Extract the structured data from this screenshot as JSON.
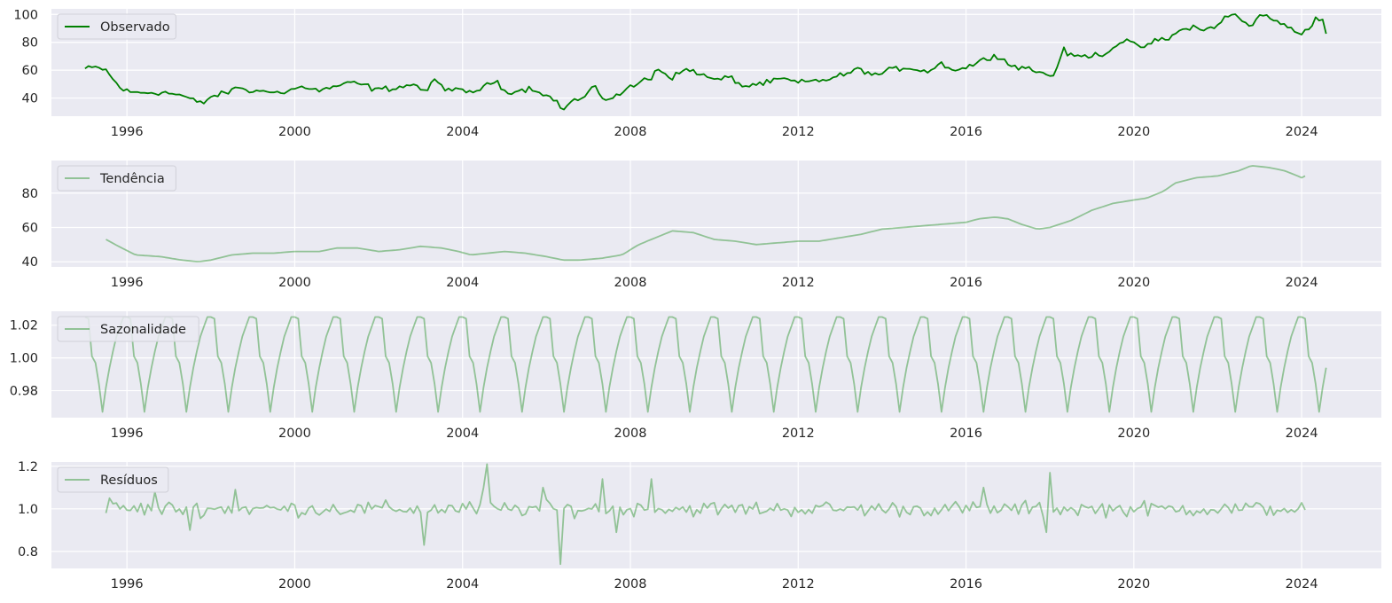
{
  "chart_data": [
    {
      "type": "line",
      "panel": "observed",
      "series": [
        {
          "name": "Observado",
          "color": "#008000",
          "opacity": 1.0
        }
      ],
      "xlim": [
        1994.2,
        2025.9
      ],
      "ylim": [
        27,
        104
      ],
      "yticks": [
        40,
        60,
        80,
        100
      ],
      "ytick_labels": [
        "40",
        "60",
        "80",
        "100"
      ],
      "xticks": [
        1996,
        2000,
        2004,
        2008,
        2012,
        2016,
        2020,
        2024
      ],
      "xtick_labels": [
        "1996",
        "2000",
        "2004",
        "2008",
        "2012",
        "2016",
        "2020",
        "2024"
      ],
      "grid": true,
      "legend": "upper-left",
      "start": 1995.0,
      "end": 2024.58,
      "anchors": [
        [
          1995.0,
          61
        ],
        [
          1995.3,
          62
        ],
        [
          1995.5,
          60
        ],
        [
          1995.7,
          52
        ],
        [
          1995.9,
          46
        ],
        [
          1996.1,
          44
        ],
        [
          1996.5,
          44
        ],
        [
          1996.9,
          44
        ],
        [
          1997.3,
          42
        ],
        [
          1997.6,
          38
        ],
        [
          1997.8,
          36
        ],
        [
          1998.0,
          41
        ],
        [
          1998.3,
          43
        ],
        [
          1998.7,
          48
        ],
        [
          1999.0,
          44
        ],
        [
          1999.4,
          46
        ],
        [
          1999.7,
          43
        ],
        [
          2000.0,
          47
        ],
        [
          2000.3,
          48
        ],
        [
          2000.6,
          45
        ],
        [
          2000.9,
          48
        ],
        [
          2001.4,
          51
        ],
        [
          2001.7,
          49
        ],
        [
          2001.9,
          46
        ],
        [
          2002.3,
          47
        ],
        [
          2002.7,
          49
        ],
        [
          2002.9,
          50
        ],
        [
          2003.1,
          43
        ],
        [
          2003.3,
          53
        ],
        [
          2003.6,
          47
        ],
        [
          2003.9,
          45
        ],
        [
          2004.2,
          44
        ],
        [
          2004.6,
          49
        ],
        [
          2004.8,
          53
        ],
        [
          2005.0,
          45
        ],
        [
          2005.3,
          45
        ],
        [
          2005.6,
          47
        ],
        [
          2005.9,
          44
        ],
        [
          2006.0,
          42
        ],
        [
          2006.3,
          36
        ],
        [
          2006.4,
          31
        ],
        [
          2006.6,
          38
        ],
        [
          2006.9,
          40
        ],
        [
          2007.1,
          48
        ],
        [
          2007.4,
          39
        ],
        [
          2007.7,
          42
        ],
        [
          2007.9,
          46
        ],
        [
          2008.1,
          49
        ],
        [
          2008.3,
          53
        ],
        [
          2008.5,
          54
        ],
        [
          2008.6,
          62
        ],
        [
          2008.8,
          58
        ],
        [
          2009.0,
          55
        ],
        [
          2009.3,
          60
        ],
        [
          2009.5,
          60
        ],
        [
          2009.8,
          55
        ],
        [
          2010.1,
          53
        ],
        [
          2010.4,
          55
        ],
        [
          2010.7,
          48
        ],
        [
          2011.0,
          50
        ],
        [
          2011.3,
          51
        ],
        [
          2011.6,
          54
        ],
        [
          2012.0,
          51
        ],
        [
          2012.3,
          52
        ],
        [
          2012.6,
          53
        ],
        [
          2012.9,
          55
        ],
        [
          2013.2,
          58
        ],
        [
          2013.5,
          61
        ],
        [
          2013.8,
          56
        ],
        [
          2014.2,
          60
        ],
        [
          2014.5,
          62
        ],
        [
          2014.8,
          61
        ],
        [
          2015.1,
          59
        ],
        [
          2015.4,
          65
        ],
        [
          2015.6,
          62
        ],
        [
          2015.8,
          60
        ],
        [
          2016.0,
          62
        ],
        [
          2016.3,
          66
        ],
        [
          2016.5,
          68
        ],
        [
          2016.7,
          72
        ],
        [
          2016.9,
          67
        ],
        [
          2017.1,
          63
        ],
        [
          2017.4,
          62
        ],
        [
          2017.7,
          59
        ],
        [
          2017.9,
          57
        ],
        [
          2018.1,
          56
        ],
        [
          2018.3,
          75
        ],
        [
          2018.5,
          70
        ],
        [
          2018.8,
          70
        ],
        [
          2019.1,
          71
        ],
        [
          2019.4,
          73
        ],
        [
          2019.6,
          79
        ],
        [
          2019.8,
          82
        ],
        [
          2020.1,
          76
        ],
        [
          2020.4,
          79
        ],
        [
          2020.6,
          82
        ],
        [
          2020.8,
          82
        ],
        [
          2021.1,
          88
        ],
        [
          2021.4,
          92
        ],
        [
          2021.6,
          88
        ],
        [
          2021.8,
          90
        ],
        [
          2022.0,
          93
        ],
        [
          2022.2,
          98
        ],
        [
          2022.4,
          100
        ],
        [
          2022.6,
          95
        ],
        [
          2022.8,
          91
        ],
        [
          2023.0,
          99
        ],
        [
          2023.2,
          100
        ],
        [
          2023.4,
          94
        ],
        [
          2023.6,
          92
        ],
        [
          2023.8,
          89
        ],
        [
          2024.0,
          86
        ],
        [
          2024.2,
          92
        ],
        [
          2024.35,
          97
        ],
        [
          2024.5,
          96
        ],
        [
          2024.58,
          86
        ]
      ],
      "noise": 2.0
    },
    {
      "type": "line",
      "panel": "trend",
      "series": [
        {
          "name": "Tendência",
          "color": "#008000",
          "opacity": 0.38
        }
      ],
      "xlim": [
        1994.2,
        2025.9
      ],
      "ylim": [
        37,
        99
      ],
      "yticks": [
        40,
        60,
        80
      ],
      "ytick_labels": [
        "40",
        "60",
        "80"
      ],
      "xticks": [
        1996,
        2000,
        2004,
        2008,
        2012,
        2016,
        2020,
        2024
      ],
      "xtick_labels": [
        "1996",
        "2000",
        "2004",
        "2008",
        "2012",
        "2016",
        "2020",
        "2024"
      ],
      "grid": true,
      "legend": "upper-left",
      "start": 1995.5,
      "end": 2024.08,
      "anchors": [
        [
          1995.5,
          53
        ],
        [
          1995.8,
          49
        ],
        [
          1996.2,
          44
        ],
        [
          1996.8,
          43
        ],
        [
          1997.3,
          41
        ],
        [
          1997.7,
          40
        ],
        [
          1998.0,
          41
        ],
        [
          1998.5,
          44
        ],
        [
          1999.0,
          45
        ],
        [
          1999.5,
          45
        ],
        [
          2000.0,
          46
        ],
        [
          2000.6,
          46
        ],
        [
          2001.0,
          48
        ],
        [
          2001.5,
          48
        ],
        [
          2002.0,
          46
        ],
        [
          2002.5,
          47
        ],
        [
          2003.0,
          49
        ],
        [
          2003.5,
          48
        ],
        [
          2003.9,
          46
        ],
        [
          2004.2,
          44
        ],
        [
          2004.6,
          45
        ],
        [
          2005.0,
          46
        ],
        [
          2005.5,
          45
        ],
        [
          2006.0,
          43
        ],
        [
          2006.4,
          41
        ],
        [
          2006.8,
          41
        ],
        [
          2007.3,
          42
        ],
        [
          2007.8,
          44
        ],
        [
          2008.2,
          50
        ],
        [
          2008.7,
          55
        ],
        [
          2009.0,
          58
        ],
        [
          2009.5,
          57
        ],
        [
          2010.0,
          53
        ],
        [
          2010.5,
          52
        ],
        [
          2011.0,
          50
        ],
        [
          2011.5,
          51
        ],
        [
          2012.0,
          52
        ],
        [
          2012.5,
          52
        ],
        [
          2013.0,
          54
        ],
        [
          2013.5,
          56
        ],
        [
          2014.0,
          59
        ],
        [
          2014.5,
          60
        ],
        [
          2015.0,
          61
        ],
        [
          2015.5,
          62
        ],
        [
          2016.0,
          63
        ],
        [
          2016.3,
          65
        ],
        [
          2016.7,
          66
        ],
        [
          2017.0,
          65
        ],
        [
          2017.3,
          62
        ],
        [
          2017.7,
          59
        ],
        [
          2018.0,
          60
        ],
        [
          2018.5,
          64
        ],
        [
          2019.0,
          70
        ],
        [
          2019.5,
          74
        ],
        [
          2020.0,
          76
        ],
        [
          2020.3,
          77
        ],
        [
          2020.7,
          81
        ],
        [
          2021.0,
          86
        ],
        [
          2021.5,
          89
        ],
        [
          2022.0,
          90
        ],
        [
          2022.5,
          93
        ],
        [
          2022.8,
          96
        ],
        [
          2023.2,
          95
        ],
        [
          2023.6,
          93
        ],
        [
          2024.0,
          89
        ],
        [
          2024.08,
          90
        ]
      ],
      "noise": 0.0
    },
    {
      "type": "line",
      "panel": "seasonal",
      "series": [
        {
          "name": "Sazonalidade",
          "color": "#008000",
          "opacity": 0.38
        }
      ],
      "xlim": [
        1994.2,
        2025.9
      ],
      "ylim": [
        0.9635,
        1.0285
      ],
      "yticks": [
        0.98,
        1.0,
        1.02
      ],
      "ytick_labels": [
        "0.98",
        "1.00",
        "1.02"
      ],
      "xticks": [
        1996,
        2000,
        2004,
        2008,
        2012,
        2016,
        2020,
        2024
      ],
      "xtick_labels": [
        "1996",
        "2000",
        "2004",
        "2008",
        "2012",
        "2016",
        "2020",
        "2024"
      ],
      "grid": true,
      "legend": "upper-left",
      "start": 1995.0,
      "end": 2024.58,
      "pattern": [
        1.025,
        1.024,
        1.001,
        0.997,
        0.984,
        0.967,
        0.982,
        0.994,
        1.004,
        1.013,
        1.019,
        1.025
      ]
    },
    {
      "type": "line",
      "panel": "residual",
      "series": [
        {
          "name": "Resíduos",
          "color": "#008000",
          "opacity": 0.38
        }
      ],
      "xlim": [
        1994.2,
        2025.9
      ],
      "ylim": [
        0.72,
        1.22
      ],
      "yticks": [
        0.8,
        1.0,
        1.2
      ],
      "ytick_labels": [
        "0.8",
        "1.0",
        "1.2"
      ],
      "xticks": [
        1996,
        2000,
        2004,
        2008,
        2012,
        2016,
        2020,
        2024
      ],
      "xtick_labels": [
        "1996",
        "2000",
        "2004",
        "2008",
        "2012",
        "2016",
        "2020",
        "2024"
      ],
      "grid": true,
      "legend": "upper-left",
      "start": 1995.5,
      "end": 2024.08,
      "base": 1.0,
      "noise": 0.035,
      "spikes": [
        [
          1995.6,
          1.05
        ],
        [
          1996.7,
          1.08
        ],
        [
          1997.5,
          0.9
        ],
        [
          1998.6,
          1.09
        ],
        [
          2003.1,
          0.83
        ],
        [
          2004.5,
          1.1
        ],
        [
          2004.6,
          1.21
        ],
        [
          2005.9,
          1.1
        ],
        [
          2006.3,
          0.74
        ],
        [
          2007.3,
          1.14
        ],
        [
          2007.7,
          0.89
        ],
        [
          2008.5,
          1.14
        ],
        [
          2016.4,
          1.1
        ],
        [
          2017.9,
          0.89
        ],
        [
          2018.0,
          1.17
        ]
      ]
    }
  ]
}
